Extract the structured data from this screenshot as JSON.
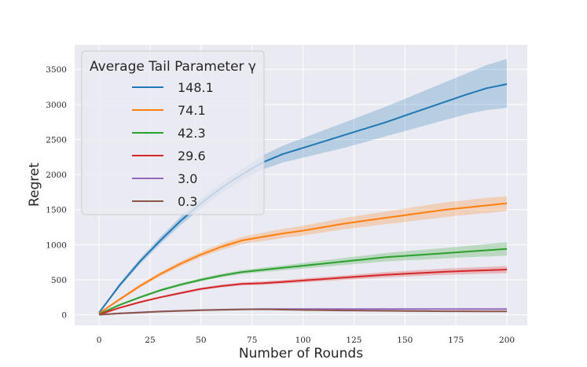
{
  "chart_data": {
    "type": "line",
    "title": "",
    "xlabel": "Number of Rounds",
    "ylabel": "Regret",
    "xlim": [
      -12,
      210
    ],
    "ylim": [
      -150,
      3850
    ],
    "xticks": [
      0,
      25,
      50,
      75,
      100,
      125,
      150,
      175,
      200
    ],
    "yticks": [
      0,
      500,
      1000,
      1500,
      2000,
      2500,
      3000,
      3500
    ],
    "grid": true,
    "legend": {
      "title": "Average Tail Parameter γ",
      "placement": "top-left"
    },
    "x": [
      0,
      10,
      20,
      30,
      40,
      50,
      60,
      70,
      80,
      90,
      100,
      110,
      120,
      130,
      140,
      150,
      160,
      170,
      180,
      190,
      200
    ],
    "series": [
      {
        "name": "148.1",
        "color": "#1f77b4",
        "values": [
          30,
          420,
          760,
          1060,
          1340,
          1590,
          1810,
          2000,
          2170,
          2290,
          2380,
          2470,
          2560,
          2650,
          2740,
          2840,
          2940,
          3040,
          3140,
          3230,
          3290
        ],
        "lower": [
          20,
          390,
          720,
          1010,
          1280,
          1520,
          1735,
          1920,
          2070,
          2170,
          2240,
          2310,
          2380,
          2460,
          2540,
          2620,
          2700,
          2780,
          2860,
          2920,
          2950
        ],
        "upper": [
          40,
          450,
          800,
          1110,
          1400,
          1660,
          1885,
          2080,
          2270,
          2410,
          2520,
          2630,
          2740,
          2850,
          2960,
          3080,
          3200,
          3320,
          3440,
          3560,
          3650
        ]
      },
      {
        "name": "74.1",
        "color": "#ff7f0e",
        "values": [
          20,
          220,
          410,
          580,
          730,
          860,
          970,
          1060,
          1110,
          1160,
          1200,
          1250,
          1300,
          1340,
          1380,
          1420,
          1460,
          1500,
          1530,
          1560,
          1590
        ],
        "lower": [
          15,
          200,
          385,
          550,
          695,
          820,
          925,
          1010,
          1050,
          1095,
          1130,
          1175,
          1220,
          1255,
          1290,
          1325,
          1360,
          1395,
          1425,
          1450,
          1480
        ],
        "upper": [
          25,
          240,
          435,
          610,
          765,
          900,
          1015,
          1110,
          1170,
          1225,
          1270,
          1325,
          1380,
          1425,
          1470,
          1515,
          1560,
          1605,
          1635,
          1670,
          1690
        ]
      },
      {
        "name": "42.3",
        "color": "#2ca02c",
        "values": [
          10,
          140,
          250,
          350,
          430,
          500,
          560,
          610,
          640,
          670,
          700,
          730,
          760,
          790,
          820,
          840,
          860,
          880,
          900,
          920,
          940
        ],
        "lower": [
          8,
          128,
          235,
          332,
          410,
          477,
          535,
          582,
          608,
          635,
          660,
          685,
          710,
          735,
          760,
          775,
          790,
          805,
          820,
          832,
          845
        ],
        "upper": [
          12,
          152,
          265,
          368,
          450,
          523,
          585,
          638,
          672,
          705,
          740,
          775,
          810,
          845,
          880,
          905,
          930,
          955,
          980,
          1008,
          1035
        ]
      },
      {
        "name": "29.6",
        "color": "#d62728",
        "values": [
          5,
          100,
          180,
          250,
          310,
          370,
          410,
          440,
          450,
          470,
          490,
          510,
          530,
          550,
          570,
          585,
          600,
          615,
          625,
          635,
          645
        ],
        "lower": [
          3,
          90,
          168,
          236,
          294,
          352,
          390,
          418,
          426,
          444,
          462,
          480,
          498,
          515,
          532,
          545,
          558,
          570,
          578,
          586,
          594
        ],
        "upper": [
          7,
          110,
          192,
          264,
          326,
          388,
          430,
          462,
          474,
          496,
          518,
          540,
          562,
          585,
          608,
          625,
          642,
          660,
          672,
          684,
          696
        ]
      },
      {
        "name": "3.0",
        "color": "#9467bd",
        "values": [
          2,
          20,
          35,
          48,
          58,
          67,
          74,
          79,
          82,
          82,
          82,
          82,
          82,
          82,
          82,
          82,
          82,
          82,
          82,
          82,
          82
        ],
        "lower": [
          1,
          17,
          31,
          43,
          52,
          60,
          66,
          71,
          73,
          73,
          73,
          73,
          73,
          73,
          73,
          73,
          73,
          73,
          73,
          73,
          73
        ],
        "upper": [
          3,
          23,
          39,
          53,
          64,
          74,
          82,
          87,
          91,
          91,
          91,
          91,
          91,
          91,
          91,
          91,
          91,
          91,
          91,
          91,
          91
        ]
      },
      {
        "name": "0.3",
        "color": "#8c564b",
        "values": [
          2,
          19,
          33,
          46,
          56,
          65,
          72,
          77,
          80,
          74,
          69,
          65,
          62,
          59,
          57,
          55,
          53,
          51,
          50,
          49,
          48
        ],
        "lower": [
          1,
          16,
          29,
          41,
          50,
          58,
          64,
          69,
          71,
          66,
          61,
          57,
          54,
          51,
          49,
          47,
          45,
          43,
          42,
          41,
          40
        ],
        "upper": [
          3,
          22,
          37,
          51,
          62,
          72,
          80,
          85,
          89,
          82,
          77,
          73,
          70,
          67,
          65,
          63,
          61,
          59,
          58,
          57,
          56
        ]
      }
    ]
  }
}
